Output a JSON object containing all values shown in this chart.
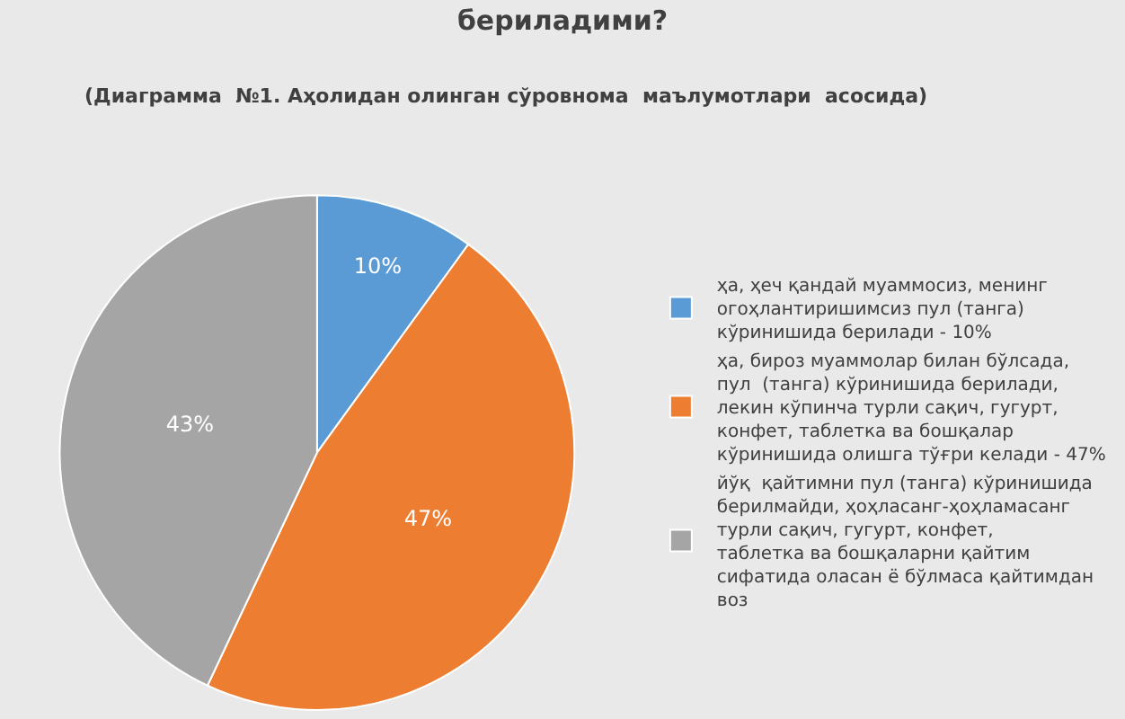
{
  "chart_data": {
    "type": "pie",
    "title": "бериладими?",
    "subtitle": "(Диаграмма  №1. Аҳолидан олинган сўровнома  маълумотлари  асосида)",
    "categories": [
      "ҳа, ҳеч қандай муаммосиз, менинг огоҳлантиришимсиз пул (танга) кўринишида берилади - 10%",
      "ҳа, бироз муаммолар билан бўлсада, пул  (танга) кўринишида берилади, лекин кўпинча турли сақич, гугурт, конфет, таблетка ва бошқалар кўринишида олишга тўғри келади - 47%",
      "йўқ  қайтимни пул (танга) кўринишида берилмайди, ҳоҳласанг-ҳоҳламасанг турли сақич, гугурт, конфет, таблетка ва бошқаларни қайтим сифатида оласан ё бўлмаса қайтимдан воз"
    ],
    "values": [
      10,
      47,
      43
    ],
    "colors": [
      "#5b9bd5",
      "#ed7d31",
      "#a5a5a5"
    ],
    "value_labels": [
      "10%",
      "47%",
      "43%"
    ],
    "legend": "right"
  }
}
